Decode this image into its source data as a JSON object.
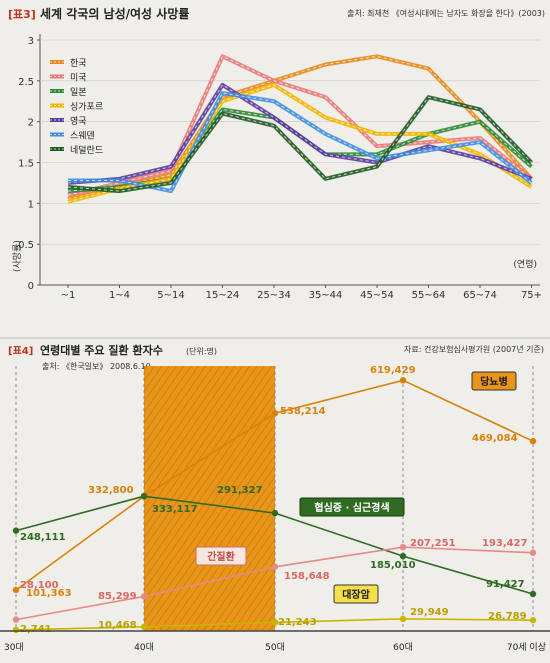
{
  "chart_data": [
    {
      "type": "line",
      "tag": "[표3]",
      "title": "세계 각국의 남성/여성 사망률",
      "source": "출처: 최재천 《여성시대에는 남자도 화장을 한다》(2003)",
      "ylabel": "(사망률)",
      "xlabel": "(연령)",
      "ylim": [
        0,
        3
      ],
      "yticks": [
        "0",
        "0.5",
        "1",
        "1.5",
        "2",
        "2.5",
        "3"
      ],
      "categories": [
        "~1",
        "1~4",
        "5~14",
        "15~24",
        "25~34",
        "35~44",
        "45~54",
        "55~64",
        "65~74",
        "75+"
      ],
      "legend_position": "top-left",
      "series": [
        {
          "name": "한국",
          "color": "#e8891c",
          "values": [
            1.05,
            1.2,
            1.35,
            2.3,
            2.5,
            2.7,
            2.8,
            2.65,
            2.0,
            1.3
          ]
        },
        {
          "name": "미국",
          "color": "#e87a78",
          "values": [
            1.1,
            1.25,
            1.4,
            2.8,
            2.5,
            2.3,
            1.7,
            1.75,
            1.8,
            1.3
          ]
        },
        {
          "name": "일본",
          "color": "#2e8a36",
          "values": [
            1.15,
            1.2,
            1.3,
            2.15,
            2.05,
            1.6,
            1.6,
            1.85,
            2.0,
            1.45
          ]
        },
        {
          "name": "싱가포르",
          "color": "#f4b400",
          "values": [
            1.02,
            1.18,
            1.3,
            2.25,
            2.45,
            2.05,
            1.85,
            1.85,
            1.6,
            1.2
          ]
        },
        {
          "name": "영국",
          "color": "#5a3ba0",
          "values": [
            1.25,
            1.3,
            1.45,
            2.45,
            2.05,
            1.6,
            1.5,
            1.7,
            1.55,
            1.3
          ]
        },
        {
          "name": "스웨덴",
          "color": "#3f8de0",
          "values": [
            1.28,
            1.28,
            1.15,
            2.35,
            2.25,
            1.85,
            1.55,
            1.65,
            1.75,
            1.25
          ]
        },
        {
          "name": "네덜란드",
          "color": "#1f5a24",
          "values": [
            1.2,
            1.15,
            1.25,
            2.1,
            1.95,
            1.3,
            1.45,
            2.3,
            2.15,
            1.5
          ]
        }
      ]
    },
    {
      "type": "line",
      "tag": "[표4]",
      "title": "연령대별 주요 질환 환자수",
      "unit": "(단위:명)",
      "source_right": "자료: 건강보험심사평가원 (2007년 기준)",
      "source_left": "출처: 《한국일보》 2008.6.10",
      "categories": [
        "30대",
        "40대",
        "50대",
        "60대",
        "70세 이상"
      ],
      "highlight_category": "40대",
      "ylim": [
        0,
        640000
      ],
      "series": [
        {
          "name": "당뇨병",
          "color": "#d9820a",
          "labels": [
            "101,363",
            "332,800",
            "538,214",
            "619,429",
            "469,084"
          ],
          "values": [
            101363,
            332800,
            538214,
            619429,
            469084
          ]
        },
        {
          "name": "협심증 · 심근경색",
          "color": "#2f6b22",
          "labels": [
            "248,111",
            "333,117",
            "291,327",
            "185,010",
            "91,427"
          ],
          "values": [
            248111,
            333117,
            291327,
            185010,
            91427
          ]
        },
        {
          "name": "간질환",
          "color": "#e58a86",
          "labels": [
            "28,100",
            "85,299",
            "158,648",
            "207,251",
            "193,427"
          ],
          "values": [
            28100,
            85299,
            158648,
            207251,
            193427
          ]
        },
        {
          "name": "대장암",
          "color": "#c9b400",
          "labels": [
            "2,741",
            "10,468",
            "21,243",
            "29,949",
            "26,789"
          ],
          "values": [
            2741,
            10468,
            21243,
            29949,
            26789
          ]
        }
      ]
    }
  ]
}
